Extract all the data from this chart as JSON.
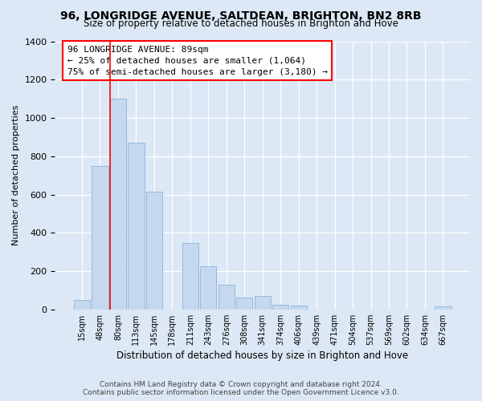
{
  "title1": "96, LONGRIDGE AVENUE, SALTDEAN, BRIGHTON, BN2 8RB",
  "title2": "Size of property relative to detached houses in Brighton and Hove",
  "xlabel": "Distribution of detached houses by size in Brighton and Hove",
  "ylabel": "Number of detached properties",
  "categories": [
    "15sqm",
    "48sqm",
    "80sqm",
    "113sqm",
    "145sqm",
    "178sqm",
    "211sqm",
    "243sqm",
    "276sqm",
    "308sqm",
    "341sqm",
    "374sqm",
    "406sqm",
    "439sqm",
    "471sqm",
    "504sqm",
    "537sqm",
    "569sqm",
    "602sqm",
    "634sqm",
    "667sqm"
  ],
  "values": [
    50,
    750,
    1100,
    870,
    615,
    0,
    345,
    225,
    130,
    60,
    70,
    25,
    20,
    0,
    0,
    0,
    0,
    0,
    0,
    0,
    15
  ],
  "bar_color": "#c5d8ef",
  "bar_edge_color": "#8ab4d8",
  "red_line_index": 2,
  "annotation_line1": "96 LONGRIDGE AVENUE: 89sqm",
  "annotation_line2": "← 25% of detached houses are smaller (1,064)",
  "annotation_line3": "75% of semi-detached houses are larger (3,180) →",
  "ylim": [
    0,
    1400
  ],
  "yticks": [
    0,
    200,
    400,
    600,
    800,
    1000,
    1200,
    1400
  ],
  "footer1": "Contains HM Land Registry data © Crown copyright and database right 2024.",
  "footer2": "Contains public sector information licensed under the Open Government Licence v3.0.",
  "bg_color": "#dce8f5"
}
